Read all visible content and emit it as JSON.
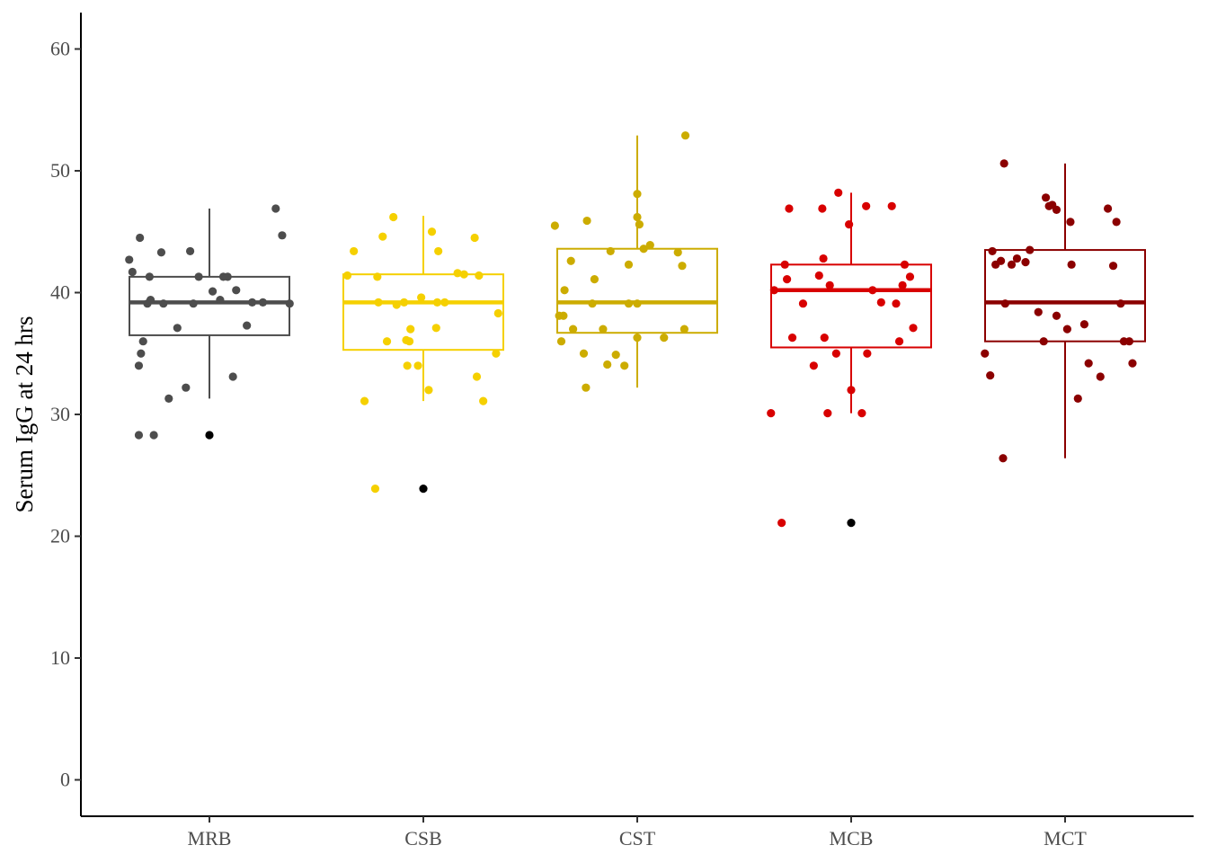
{
  "chart_data": {
    "type": "box",
    "xlabel": "",
    "ylabel": "Serum IgG at 24 hrs",
    "ylim": [
      -3,
      63
    ],
    "yticks": [
      0,
      10,
      20,
      30,
      40,
      50,
      60
    ],
    "ytick_labels": [
      "0",
      "10",
      "20",
      "30",
      "40",
      "50",
      "60"
    ],
    "categories": [
      "MRB",
      "CSB",
      "CST",
      "MCB",
      "MCT"
    ],
    "grid": false,
    "legend": "none",
    "outlier_color": "#000000",
    "series": [
      {
        "category": "MRB",
        "color": "#4d4d4d",
        "box": {
          "lower_whisker": 31.3,
          "q1": 36.5,
          "median": 39.2,
          "q3": 41.3,
          "upper_whisker": 46.9
        },
        "outliers": [
          28.3
        ],
        "points": [
          {
            "x": -0.75,
            "y": 42.7
          },
          {
            "x": -0.72,
            "y": 41.7
          },
          {
            "x": -0.65,
            "y": 44.5
          },
          {
            "x": -0.62,
            "y": 36.0
          },
          {
            "x": -0.64,
            "y": 35.0
          },
          {
            "x": -0.66,
            "y": 34.0
          },
          {
            "x": -0.66,
            "y": 28.3
          },
          {
            "x": -0.58,
            "y": 39.1
          },
          {
            "x": -0.55,
            "y": 39.4
          },
          {
            "x": -0.56,
            "y": 41.3
          },
          {
            "x": -0.52,
            "y": 28.3
          },
          {
            "x": -0.45,
            "y": 43.3
          },
          {
            "x": -0.43,
            "y": 39.1
          },
          {
            "x": -0.38,
            "y": 31.3
          },
          {
            "x": -0.3,
            "y": 37.1
          },
          {
            "x": -0.22,
            "y": 32.2
          },
          {
            "x": -0.18,
            "y": 43.4
          },
          {
            "x": -0.15,
            "y": 39.1
          },
          {
            "x": -0.1,
            "y": 41.3
          },
          {
            "x": 0.03,
            "y": 40.1
          },
          {
            "x": 0.1,
            "y": 39.4
          },
          {
            "x": 0.13,
            "y": 41.3
          },
          {
            "x": 0.17,
            "y": 41.3
          },
          {
            "x": 0.22,
            "y": 33.1
          },
          {
            "x": 0.25,
            "y": 40.2
          },
          {
            "x": 0.35,
            "y": 37.3
          },
          {
            "x": 0.4,
            "y": 39.2
          },
          {
            "x": 0.5,
            "y": 39.2
          },
          {
            "x": 0.62,
            "y": 46.9
          },
          {
            "x": 0.68,
            "y": 44.7
          },
          {
            "x": 0.75,
            "y": 39.1
          }
        ]
      },
      {
        "category": "CSB",
        "color": "#f5d000",
        "box": {
          "lower_whisker": 31.1,
          "q1": 35.3,
          "median": 39.2,
          "q3": 41.5,
          "upper_whisker": 46.3
        },
        "outliers": [
          23.9
        ],
        "points": [
          {
            "x": -0.71,
            "y": 41.4
          },
          {
            "x": -0.65,
            "y": 43.4
          },
          {
            "x": -0.55,
            "y": 31.1
          },
          {
            "x": -0.45,
            "y": 23.9
          },
          {
            "x": -0.43,
            "y": 41.3
          },
          {
            "x": -0.42,
            "y": 39.2
          },
          {
            "x": -0.38,
            "y": 44.6
          },
          {
            "x": -0.34,
            "y": 36.0
          },
          {
            "x": -0.28,
            "y": 46.2
          },
          {
            "x": -0.25,
            "y": 39.0
          },
          {
            "x": -0.18,
            "y": 39.2
          },
          {
            "x": -0.16,
            "y": 36.1
          },
          {
            "x": -0.13,
            "y": 36.0
          },
          {
            "x": -0.12,
            "y": 37.0
          },
          {
            "x": -0.15,
            "y": 34.0
          },
          {
            "x": -0.02,
            "y": 39.6
          },
          {
            "x": -0.05,
            "y": 34.0
          },
          {
            "x": 0.05,
            "y": 32.0
          },
          {
            "x": 0.08,
            "y": 45.0
          },
          {
            "x": 0.12,
            "y": 37.1
          },
          {
            "x": 0.14,
            "y": 43.4
          },
          {
            "x": 0.13,
            "y": 39.2
          },
          {
            "x": 0.2,
            "y": 39.2
          },
          {
            "x": 0.32,
            "y": 41.6
          },
          {
            "x": 0.38,
            "y": 41.5
          },
          {
            "x": 0.48,
            "y": 44.5
          },
          {
            "x": 0.5,
            "y": 33.1
          },
          {
            "x": 0.52,
            "y": 41.4
          },
          {
            "x": 0.56,
            "y": 31.1
          },
          {
            "x": 0.68,
            "y": 35.0
          },
          {
            "x": 0.7,
            "y": 38.3
          }
        ]
      },
      {
        "category": "CST",
        "color": "#ccac00",
        "box": {
          "lower_whisker": 32.2,
          "q1": 36.7,
          "median": 39.2,
          "q3": 43.6,
          "upper_whisker": 52.9
        },
        "outliers": [],
        "points": [
          {
            "x": -0.77,
            "y": 45.5
          },
          {
            "x": -0.73,
            "y": 38.1
          },
          {
            "x": -0.71,
            "y": 36.0
          },
          {
            "x": -0.69,
            "y": 38.1
          },
          {
            "x": -0.68,
            "y": 40.2
          },
          {
            "x": -0.62,
            "y": 42.6
          },
          {
            "x": -0.6,
            "y": 37.0
          },
          {
            "x": -0.5,
            "y": 35.0
          },
          {
            "x": -0.48,
            "y": 32.2
          },
          {
            "x": -0.47,
            "y": 45.9
          },
          {
            "x": -0.42,
            "y": 39.1
          },
          {
            "x": -0.4,
            "y": 41.1
          },
          {
            "x": -0.32,
            "y": 37.0
          },
          {
            "x": -0.28,
            "y": 34.1
          },
          {
            "x": -0.25,
            "y": 43.4
          },
          {
            "x": -0.2,
            "y": 34.9
          },
          {
            "x": -0.12,
            "y": 34.0
          },
          {
            "x": -0.08,
            "y": 42.3
          },
          {
            "x": -0.08,
            "y": 39.1
          },
          {
            "x": 0.0,
            "y": 48.1
          },
          {
            "x": 0.0,
            "y": 46.2
          },
          {
            "x": 0.0,
            "y": 39.1
          },
          {
            "x": 0.0,
            "y": 36.3
          },
          {
            "x": 0.02,
            "y": 45.6
          },
          {
            "x": 0.06,
            "y": 43.6
          },
          {
            "x": 0.12,
            "y": 43.9
          },
          {
            "x": 0.25,
            "y": 36.3
          },
          {
            "x": 0.38,
            "y": 43.3
          },
          {
            "x": 0.42,
            "y": 42.2
          },
          {
            "x": 0.44,
            "y": 37.0
          },
          {
            "x": 0.45,
            "y": 52.9
          }
        ]
      },
      {
        "category": "MCB",
        "color": "#d80000",
        "box": {
          "lower_whisker": 30.1,
          "q1": 35.5,
          "median": 40.2,
          "q3": 42.3,
          "upper_whisker": 48.2
        },
        "outliers": [
          21.1
        ],
        "points": [
          {
            "x": -0.75,
            "y": 30.1
          },
          {
            "x": -0.72,
            "y": 40.2
          },
          {
            "x": -0.65,
            "y": 21.1
          },
          {
            "x": -0.62,
            "y": 42.3
          },
          {
            "x": -0.6,
            "y": 41.1
          },
          {
            "x": -0.58,
            "y": 46.9
          },
          {
            "x": -0.55,
            "y": 36.3
          },
          {
            "x": -0.45,
            "y": 39.1
          },
          {
            "x": -0.35,
            "y": 34.0
          },
          {
            "x": -0.3,
            "y": 41.4
          },
          {
            "x": -0.27,
            "y": 46.9
          },
          {
            "x": -0.25,
            "y": 36.3
          },
          {
            "x": -0.26,
            "y": 42.8
          },
          {
            "x": -0.2,
            "y": 40.6
          },
          {
            "x": -0.22,
            "y": 30.1
          },
          {
            "x": -0.14,
            "y": 35.0
          },
          {
            "x": -0.12,
            "y": 48.2
          },
          {
            "x": -0.02,
            "y": 45.6
          },
          {
            "x": 0.0,
            "y": 32.0
          },
          {
            "x": 0.1,
            "y": 30.1
          },
          {
            "x": 0.14,
            "y": 47.1
          },
          {
            "x": 0.15,
            "y": 35.0
          },
          {
            "x": 0.2,
            "y": 40.2
          },
          {
            "x": 0.28,
            "y": 39.2
          },
          {
            "x": 0.38,
            "y": 47.1
          },
          {
            "x": 0.42,
            "y": 39.1
          },
          {
            "x": 0.45,
            "y": 36.0
          },
          {
            "x": 0.48,
            "y": 40.6
          },
          {
            "x": 0.5,
            "y": 42.3
          },
          {
            "x": 0.55,
            "y": 41.3
          },
          {
            "x": 0.58,
            "y": 37.1
          }
        ]
      },
      {
        "category": "MCT",
        "color": "#8b0000",
        "box": {
          "lower_whisker": 26.4,
          "q1": 36.0,
          "median": 39.2,
          "q3": 43.5,
          "upper_whisker": 50.6
        },
        "outliers": [],
        "points": [
          {
            "x": -0.75,
            "y": 35.0
          },
          {
            "x": -0.7,
            "y": 33.2
          },
          {
            "x": -0.68,
            "y": 43.4
          },
          {
            "x": -0.65,
            "y": 42.3
          },
          {
            "x": -0.6,
            "y": 42.6
          },
          {
            "x": -0.58,
            "y": 26.4
          },
          {
            "x": -0.56,
            "y": 39.1
          },
          {
            "x": -0.57,
            "y": 50.6
          },
          {
            "x": -0.5,
            "y": 42.3
          },
          {
            "x": -0.45,
            "y": 42.8
          },
          {
            "x": -0.37,
            "y": 42.5
          },
          {
            "x": -0.33,
            "y": 43.5
          },
          {
            "x": -0.25,
            "y": 38.4
          },
          {
            "x": -0.2,
            "y": 36.0
          },
          {
            "x": -0.18,
            "y": 47.8
          },
          {
            "x": -0.15,
            "y": 47.1
          },
          {
            "x": -0.12,
            "y": 47.2
          },
          {
            "x": -0.08,
            "y": 46.8
          },
          {
            "x": -0.08,
            "y": 38.1
          },
          {
            "x": 0.02,
            "y": 37.0
          },
          {
            "x": 0.06,
            "y": 42.3
          },
          {
            "x": 0.05,
            "y": 45.8
          },
          {
            "x": 0.12,
            "y": 31.3
          },
          {
            "x": 0.18,
            "y": 37.4
          },
          {
            "x": 0.22,
            "y": 34.2
          },
          {
            "x": 0.33,
            "y": 33.1
          },
          {
            "x": 0.4,
            "y": 46.9
          },
          {
            "x": 0.45,
            "y": 42.2
          },
          {
            "x": 0.48,
            "y": 45.8
          },
          {
            "x": 0.52,
            "y": 39.1
          },
          {
            "x": 0.55,
            "y": 36.0
          },
          {
            "x": 0.6,
            "y": 36.0
          },
          {
            "x": 0.63,
            "y": 34.2
          }
        ]
      }
    ]
  }
}
